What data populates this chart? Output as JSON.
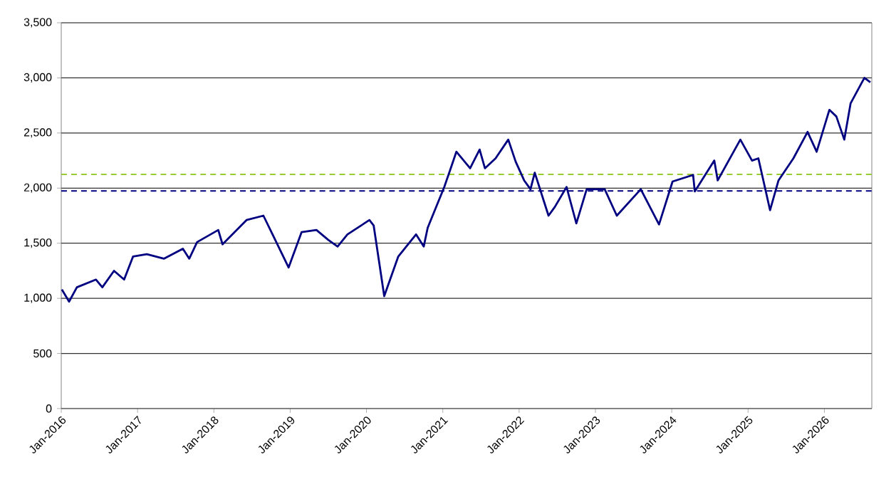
{
  "chart_data": {
    "type": "line",
    "x": [
      "2016-01-04",
      "2016-02-08",
      "2016-03-15",
      "2016-06-15",
      "2016-07-15",
      "2016-09-10",
      "2016-10-28",
      "2016-12-10",
      "2017-02-15",
      "2017-05-05",
      "2017-08-05",
      "2017-09-05",
      "2017-10-12",
      "2018-01-22",
      "2018-02-12",
      "2018-06-05",
      "2018-08-25",
      "2018-10-08",
      "2018-12-24",
      "2019-02-25",
      "2019-05-05",
      "2019-07-01",
      "2019-08-15",
      "2019-10-01",
      "2020-01-15",
      "2020-02-05",
      "2020-03-25",
      "2020-06-01",
      "2020-08-25",
      "2020-10-01",
      "2020-10-20",
      "2021-01-08",
      "2021-02-05",
      "2021-03-05",
      "2021-05-10",
      "2021-06-25",
      "2021-07-20",
      "2021-09-10",
      "2021-11-10",
      "2021-12-15",
      "2022-01-25",
      "2022-02-25",
      "2022-03-15",
      "2022-05-20",
      "2022-06-20",
      "2022-08-15",
      "2022-10-01",
      "2022-11-20",
      "2023-02-15",
      "2023-04-12",
      "2023-08-05",
      "2023-11-01",
      "2024-01-05",
      "2024-04-12",
      "2024-04-20",
      "2024-07-22",
      "2024-08-08",
      "2024-11-25",
      "2025-01-20",
      "2025-02-20",
      "2025-04-15",
      "2025-05-25",
      "2025-08-05",
      "2025-10-12",
      "2025-11-25",
      "2026-01-25",
      "2026-02-28",
      "2026-04-05",
      "2026-05-05",
      "2026-07-10",
      "2026-08-08"
    ],
    "series": [
      {
        "color": "#000080",
        "values": [
          1080,
          970,
          1100,
          1170,
          1100,
          1250,
          1170,
          1380,
          1400,
          1360,
          1450,
          1360,
          1510,
          1620,
          1490,
          1710,
          1750,
          1580,
          1280,
          1600,
          1620,
          1530,
          1470,
          1580,
          1710,
          1660,
          1020,
          1380,
          1580,
          1470,
          1640,
          2010,
          2160,
          2330,
          2180,
          2350,
          2180,
          2270,
          2440,
          2240,
          2070,
          1990,
          2140,
          1750,
          1830,
          2010,
          1680,
          1990,
          1990,
          1750,
          1990,
          1670,
          2060,
          2120,
          1970,
          2250,
          2070,
          2440,
          2250,
          2270,
          1800,
          2070,
          2270,
          2510,
          2330,
          2710,
          2650,
          2440,
          2770,
          3000,
          2960
        ]
      }
    ],
    "xlim": [
      "2016-01-01",
      "2026-08-15"
    ],
    "ylim": [
      0,
      3500
    ],
    "xticks": [
      {
        "value": "2016-01-01",
        "label": "Jan-2016"
      },
      {
        "value": "2017-01-01",
        "label": "Jan-2017"
      },
      {
        "value": "2018-01-01",
        "label": "Jan-2018"
      },
      {
        "value": "2019-01-01",
        "label": "Jan-2019"
      },
      {
        "value": "2020-01-01",
        "label": "Jan-2020"
      },
      {
        "value": "2021-01-01",
        "label": "Jan-2021"
      },
      {
        "value": "2022-01-01",
        "label": "Jan-2022"
      },
      {
        "value": "2023-01-01",
        "label": "Jan-2023"
      },
      {
        "value": "2024-01-01",
        "label": "Jan-2024"
      },
      {
        "value": "2025-01-01",
        "label": "Jan-2025"
      },
      {
        "value": "2026-01-01",
        "label": "Jan-2026"
      }
    ],
    "yticks": [
      0,
      500,
      {
        "value": 1000,
        "label": "1,000"
      },
      {
        "value": 1500,
        "label": "1,500"
      },
      {
        "value": 2000,
        "label": "2,000"
      },
      {
        "value": 2500,
        "label": "2,500"
      },
      {
        "value": 3000,
        "label": "3,000"
      },
      {
        "value": 3500,
        "label": "3,500"
      }
    ],
    "ref_lines": [
      {
        "axis": "y",
        "value": 2125,
        "color": "#99cc33",
        "line_style": "dashed"
      },
      {
        "axis": "y",
        "value": 1975,
        "color": "#000080",
        "line_style": "dashed"
      }
    ],
    "grid": "y",
    "legend": false,
    "marker": "none",
    "line_style": "solid"
  }
}
